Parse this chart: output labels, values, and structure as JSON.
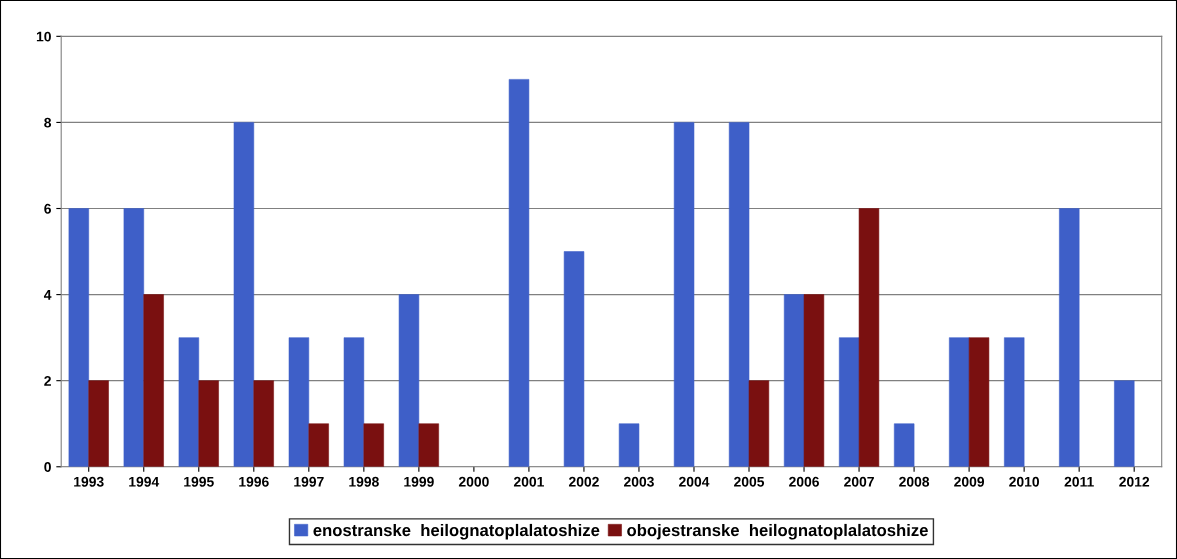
{
  "chart_data": {
    "type": "bar",
    "categories": [
      "1993",
      "1994",
      "1995",
      "1996",
      "1997",
      "1998",
      "1999",
      "2000",
      "2001",
      "2002",
      "2003",
      "2004",
      "2005",
      "2006",
      "2007",
      "2008",
      "2009",
      "2010",
      "2011",
      "2012"
    ],
    "series": [
      {
        "name": "enostranske  heilognatoplalatoshize",
        "color": "#3e5fc8",
        "values": [
          6,
          6,
          3,
          8,
          3,
          3,
          4,
          0,
          9,
          5,
          1,
          8,
          8,
          4,
          3,
          1,
          3,
          3,
          6,
          2
        ]
      },
      {
        "name": "obojestranske  heilognatoplalatoshize",
        "color": "#7a1010",
        "values": [
          2,
          4,
          2,
          2,
          1,
          1,
          1,
          0,
          0,
          0,
          0,
          0,
          2,
          4,
          6,
          0,
          3,
          0,
          0,
          0
        ]
      }
    ],
    "ylim": [
      0,
      10
    ],
    "yticks": [
      0,
      2,
      4,
      6,
      8,
      10
    ],
    "grid": "y",
    "legend": "bottom"
  }
}
